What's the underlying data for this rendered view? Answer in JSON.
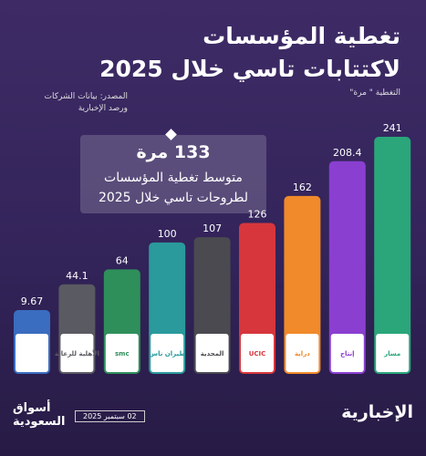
{
  "chart_data": {
    "type": "bar",
    "title": "تغطية المؤسسات لاكتتابات تاسي خلال 2025",
    "subtitle": "التغطية \" مرة\"",
    "source": "المصدر: بيانات الشركات ورصد الإخبارية",
    "callout_title": "133 مرة",
    "callout_text": "متوسط تغطية المؤسسات لطروحات تاسي خلال 2025",
    "categories": [
      null,
      "الأهلية للرعاية",
      "smc",
      "طيران ناس",
      "المجدية",
      "UCIC",
      "دراية",
      "إنتاج",
      "مسار"
    ],
    "values": [
      9.67,
      44.1,
      64,
      100,
      107,
      126,
      162,
      208.4,
      241
    ],
    "colors": [
      "#3a6cc0",
      "#5a5a62",
      "#2f8f5a",
      "#2a9a9c",
      "#4a4a50",
      "#d6363c",
      "#f08a2a",
      "#8a3fd0",
      "#2aa67a"
    ],
    "brand": "الإخبارية",
    "publisher": "أسواق السعودية",
    "date": "02 سبتمبر 2025"
  }
}
